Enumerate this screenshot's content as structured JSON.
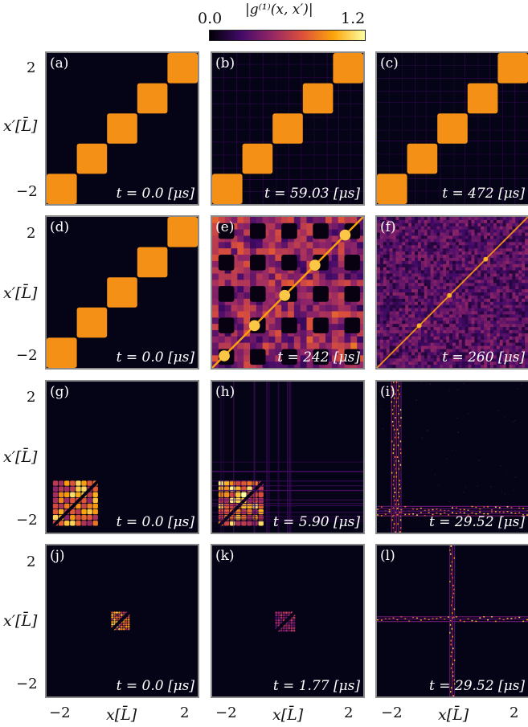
{
  "colorbar": {
    "label": "|g⁽¹⁾(x, x′)|",
    "min_label": "0.0",
    "max_label": "1.2",
    "range": [
      0.0,
      1.2
    ],
    "colormap": "inferno",
    "stops": [
      "#000004",
      "#420a68",
      "#932667",
      "#dd513a",
      "#fca50a",
      "#fcffa4"
    ]
  },
  "axes": {
    "ylabel": "x′[L̄]",
    "xlabel": "x[L̄]",
    "yticks": [
      "2",
      "−2"
    ],
    "xticks": [
      "−2",
      "2"
    ],
    "xlim": [
      -2.5,
      2.5
    ],
    "ylim": [
      -2.5,
      2.5
    ]
  },
  "chart_data": [
    {
      "type": "heatmap",
      "panel": "(a)",
      "time_label": "t = 0.0 [μs]",
      "t_us": 0.0,
      "pattern": "blocks-diagonal",
      "blocks": 5
    },
    {
      "type": "heatmap",
      "panel": "(b)",
      "time_label": "t = 59.03 [μs]",
      "t_us": 59.03,
      "pattern": "blocks-diagonal-faint-grid",
      "blocks": 5
    },
    {
      "type": "heatmap",
      "panel": "(c)",
      "time_label": "t = 472 [μs]",
      "t_us": 472,
      "pattern": "blocks-diagonal-faint-grid",
      "blocks": 5
    },
    {
      "type": "heatmap",
      "panel": "(d)",
      "time_label": "t = 0.0 [μs]",
      "t_us": 0.0,
      "pattern": "blocks-diagonal",
      "blocks": 5
    },
    {
      "type": "heatmap",
      "panel": "(e)",
      "time_label": "t = 242 [μs]",
      "t_us": 242,
      "pattern": "checker-speckle-diagonal"
    },
    {
      "type": "heatmap",
      "panel": "(f)",
      "time_label": "t = 260 [μs]",
      "t_us": 260,
      "pattern": "noise-diagonal"
    },
    {
      "type": "heatmap",
      "panel": "(g)",
      "time_label": "t = 0.0 [μs]",
      "t_us": 0.0,
      "pattern": "local-block-lower-left"
    },
    {
      "type": "heatmap",
      "panel": "(h)",
      "time_label": "t = 5.90 [μs]",
      "t_us": 5.9,
      "pattern": "local-block-spreading"
    },
    {
      "type": "heatmap",
      "panel": "(i)",
      "time_label": "t = 29.52 [μs]",
      "t_us": 29.52,
      "pattern": "cross-lines"
    },
    {
      "type": "heatmap",
      "panel": "(j)",
      "time_label": "t = 0.0 [μs]",
      "t_us": 0.0,
      "pattern": "local-block-center"
    },
    {
      "type": "heatmap",
      "panel": "(k)",
      "time_label": "t = 1.77 [μs]",
      "t_us": 1.77,
      "pattern": "local-block-center-dim"
    },
    {
      "type": "heatmap",
      "panel": "(l)",
      "time_label": "t = 29.52 [μs]",
      "t_us": 29.52,
      "pattern": "cross-center"
    }
  ]
}
